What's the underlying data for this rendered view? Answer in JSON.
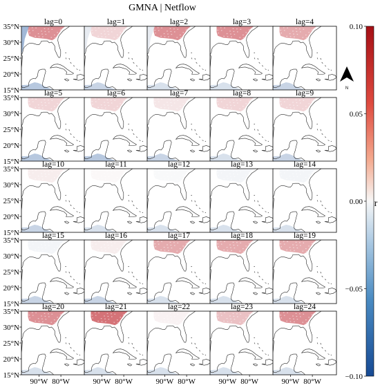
{
  "title": "GMNA | Netflow",
  "panels": [
    {
      "label": "lag=0",
      "r_north": 0.06,
      "r_west": -0.05,
      "r_south": -0.04
    },
    {
      "label": "lag=1",
      "r_north": 0.03,
      "r_west": -0.01,
      "r_south": -0.03
    },
    {
      "label": "lag=2",
      "r_north": 0.06,
      "r_west": -0.01,
      "r_south": -0.02
    },
    {
      "label": "lag=3",
      "r_north": 0.06,
      "r_west": 0.0,
      "r_south": -0.02
    },
    {
      "label": "lag=4",
      "r_north": 0.05,
      "r_west": 0.0,
      "r_south": -0.03
    },
    {
      "label": "lag=5",
      "r_north": 0.03,
      "r_west": 0.0,
      "r_south": -0.04
    },
    {
      "label": "lag=6",
      "r_north": 0.03,
      "r_west": 0.0,
      "r_south": -0.04
    },
    {
      "label": "lag=7",
      "r_north": 0.02,
      "r_west": 0.0,
      "r_south": -0.03
    },
    {
      "label": "lag=8",
      "r_north": 0.03,
      "r_west": 0.0,
      "r_south": -0.02
    },
    {
      "label": "lag=9",
      "r_north": 0.03,
      "r_west": 0.0,
      "r_south": -0.03
    },
    {
      "label": "lag=10",
      "r_north": 0.015,
      "r_west": 0.0,
      "r_south": -0.03
    },
    {
      "label": "lag=11",
      "r_north": 0.005,
      "r_west": 0.0,
      "r_south": -0.02
    },
    {
      "label": "lag=12",
      "r_north": -0.005,
      "r_west": 0.0,
      "r_south": -0.02
    },
    {
      "label": "lag=13",
      "r_north": -0.01,
      "r_west": 0.0,
      "r_south": -0.02
    },
    {
      "label": "lag=14",
      "r_north": -0.01,
      "r_west": 0.0,
      "r_south": -0.02
    },
    {
      "label": "lag=15",
      "r_north": -0.01,
      "r_west": 0.0,
      "r_south": -0.03
    },
    {
      "label": "lag=16",
      "r_north": 0.015,
      "r_west": 0.0,
      "r_south": -0.03
    },
    {
      "label": "lag=17",
      "r_north": 0.05,
      "r_west": 0.0,
      "r_south": -0.02
    },
    {
      "label": "lag=18",
      "r_north": 0.05,
      "r_west": 0.0,
      "r_south": -0.02
    },
    {
      "label": "lag=19",
      "r_north": 0.05,
      "r_west": 0.0,
      "r_south": -0.02
    },
    {
      "label": "lag=20",
      "r_north": 0.06,
      "r_west": 0.0,
      "r_south": -0.02
    },
    {
      "label": "lag=21",
      "r_north": 0.07,
      "r_west": 0.0,
      "r_south": -0.02
    },
    {
      "label": "lag=22",
      "r_north": 0.01,
      "r_west": 0.0,
      "r_south": -0.02
    },
    {
      "label": "lag=23",
      "r_north": 0.04,
      "r_west": 0.0,
      "r_south": -0.02
    },
    {
      "label": "lag=24",
      "r_north": 0.06,
      "r_west": 0.0,
      "r_south": -0.02
    }
  ],
  "lat_ticks": [
    "35°N",
    "30°N",
    "25°N",
    "20°N",
    "15°N"
  ],
  "lon_ticks": [
    "90°W",
    "80°W"
  ],
  "colorbar": {
    "label": "r",
    "min": -0.1,
    "max": 0.1,
    "ticks": [
      "0.10",
      "0.05",
      "0.00",
      "−0.05",
      "−0.10"
    ],
    "colormap": "RdBu_r",
    "neg_color": "#2b5fa8",
    "pos_color": "#c0262f"
  },
  "north_arrow_label": "N",
  "colors": {
    "coast": "#222222",
    "frame": "#000000"
  }
}
